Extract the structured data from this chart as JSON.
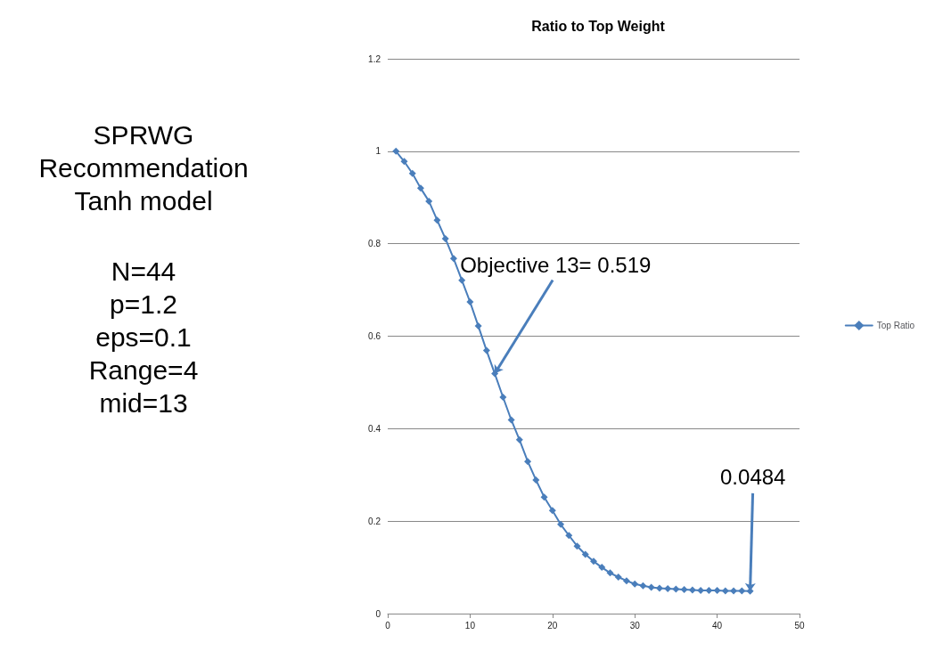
{
  "chart_data": {
    "type": "line",
    "title": "Ratio to Top Weight",
    "x": [
      1,
      2,
      3,
      4,
      5,
      6,
      7,
      8,
      9,
      10,
      11,
      12,
      13,
      14,
      15,
      16,
      17,
      18,
      19,
      20,
      21,
      22,
      23,
      24,
      25,
      26,
      27,
      28,
      29,
      30,
      31,
      32,
      33,
      34,
      35,
      36,
      37,
      38,
      39,
      40,
      41,
      42,
      43,
      44
    ],
    "series": [
      {
        "name": "Top Ratio",
        "color": "#4a7ebb",
        "values": [
          1.0,
          0.978,
          0.952,
          0.92,
          0.892,
          0.851,
          0.811,
          0.768,
          0.721,
          0.674,
          0.622,
          0.569,
          0.519,
          0.468,
          0.419,
          0.376,
          0.329,
          0.289,
          0.252,
          0.223,
          0.193,
          0.169,
          0.146,
          0.128,
          0.113,
          0.1,
          0.088,
          0.079,
          0.071,
          0.064,
          0.06,
          0.057,
          0.055,
          0.054,
          0.053,
          0.052,
          0.051,
          0.05,
          0.05,
          0.05,
          0.049,
          0.049,
          0.049,
          0.0484
        ]
      }
    ],
    "xlim": [
      0,
      50
    ],
    "xticks": [
      0,
      10,
      20,
      30,
      40,
      50
    ],
    "ylim": [
      0,
      1.2
    ],
    "yticks": [
      0,
      0.2,
      0.4,
      0.6,
      0.8,
      1,
      1.2
    ],
    "grid": "y",
    "legend": "right",
    "marker": "diamond",
    "line_style": "solid",
    "annotations": [
      "SPRWG",
      "Recommendation",
      "Tanh model",
      "N=44",
      "p=1.2",
      "eps=0.1",
      "Range=4",
      "mid=13",
      {
        "text": "Objective 13= 0.519",
        "x": 13,
        "y": 0.519
      },
      {
        "text": "0.0484",
        "x": 44,
        "y": 0.0484
      }
    ]
  }
}
